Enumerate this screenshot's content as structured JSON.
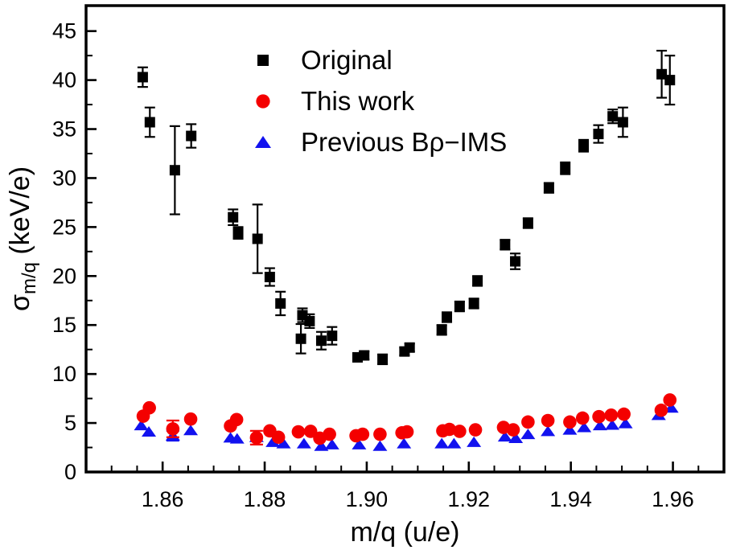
{
  "figure": {
    "background": "#ffffff",
    "frame_color": "#000000"
  },
  "chart_data": {
    "type": "scatter",
    "title": "",
    "xlabel": "m/q (u/e)",
    "ylabel_sigma": "σ",
    "ylabel_subscript": "m/q",
    "ylabel_units": " (keV/e)",
    "xlim": [
      1.845,
      1.97
    ],
    "ylim": [
      0,
      47.6
    ],
    "x_major_ticks": [
      1.86,
      1.88,
      1.9,
      1.92,
      1.94,
      1.96
    ],
    "x_minor_step": 0.005,
    "y_major_ticks": [
      0,
      5,
      10,
      15,
      20,
      25,
      30,
      35,
      40,
      45
    ],
    "y_minor_step": 2.5,
    "grid": false,
    "legend_position": "top-center-inside",
    "legend": {
      "items": [
        {
          "label": "Original",
          "marker": "square-icon",
          "color": "#000000"
        },
        {
          "label": "This work",
          "marker": "circle-icon",
          "color": "#f40000"
        },
        {
          "label": "Previous Bρ−IMS",
          "marker": "triangle-icon",
          "color": "#1212ef"
        }
      ]
    },
    "series": [
      {
        "name": "Original",
        "marker": "square",
        "color": "#000000",
        "points": [
          [
            1.8561,
            40.3,
            1.0
          ],
          [
            1.8575,
            35.7,
            1.5
          ],
          [
            1.8624,
            30.8,
            4.5
          ],
          [
            1.8656,
            34.3,
            1.2
          ],
          [
            1.8738,
            26.0,
            0.8
          ],
          [
            1.8748,
            24.4,
            0.6
          ],
          [
            1.8786,
            23.8,
            3.5
          ],
          [
            1.881,
            19.9,
            0.9
          ],
          [
            1.8831,
            17.2,
            1.2
          ],
          [
            1.8871,
            13.6,
            1.5
          ],
          [
            1.8874,
            16.0,
            0.7
          ],
          [
            1.8888,
            15.4,
            0.7
          ],
          [
            1.8911,
            13.4,
            0.9
          ],
          [
            1.8932,
            13.9,
            0.9
          ],
          [
            1.8982,
            11.7,
            0.4
          ],
          [
            1.8995,
            11.9,
            0.4
          ],
          [
            1.9031,
            11.5,
            0.5
          ],
          [
            1.9074,
            12.3,
            0.4
          ],
          [
            1.9084,
            12.7,
            0.4
          ],
          [
            1.9147,
            14.5,
            0.5
          ],
          [
            1.9157,
            15.8,
            0.5
          ],
          [
            1.9182,
            16.9,
            0.5
          ],
          [
            1.921,
            17.2,
            0.5
          ],
          [
            1.9217,
            19.5,
            0.5
          ],
          [
            1.9271,
            23.2,
            0.5
          ],
          [
            1.9291,
            21.5,
            0.8
          ],
          [
            1.9316,
            25.4,
            0.5
          ],
          [
            1.9357,
            29.0,
            0.5
          ],
          [
            1.9389,
            31.0,
            0.6
          ],
          [
            1.9425,
            33.3,
            0.6
          ],
          [
            1.9454,
            34.5,
            0.9
          ],
          [
            1.9482,
            36.3,
            0.7
          ],
          [
            1.9502,
            35.7,
            1.5
          ],
          [
            1.9578,
            40.6,
            2.4
          ],
          [
            1.9594,
            40.0,
            2.5
          ]
        ]
      },
      {
        "name": "This work",
        "marker": "circle",
        "color": "#f40000",
        "points": [
          [
            1.8562,
            5.7,
            0
          ],
          [
            1.8574,
            6.55,
            0
          ],
          [
            1.862,
            4.4,
            0.85
          ],
          [
            1.8655,
            5.4,
            0
          ],
          [
            1.8733,
            4.7,
            0
          ],
          [
            1.8745,
            5.35,
            0
          ],
          [
            1.8784,
            3.5,
            0.7
          ],
          [
            1.881,
            4.2,
            0
          ],
          [
            1.8827,
            3.55,
            0
          ],
          [
            1.8866,
            4.1,
            0
          ],
          [
            1.889,
            4.15,
            0
          ],
          [
            1.8908,
            3.45,
            0
          ],
          [
            1.8927,
            3.85,
            0
          ],
          [
            1.8979,
            3.7,
            0
          ],
          [
            1.8992,
            3.85,
            0
          ],
          [
            1.9026,
            3.85,
            0
          ],
          [
            1.9069,
            4.0,
            0
          ],
          [
            1.9079,
            4.1,
            0
          ],
          [
            1.9149,
            4.2,
            0
          ],
          [
            1.9162,
            4.35,
            0
          ],
          [
            1.9182,
            4.15,
            0
          ],
          [
            1.9213,
            4.3,
            0
          ],
          [
            1.9268,
            4.55,
            0
          ],
          [
            1.9287,
            4.3,
            0
          ],
          [
            1.9316,
            5.1,
            0
          ],
          [
            1.9355,
            5.25,
            0
          ],
          [
            1.9398,
            5.1,
            0
          ],
          [
            1.9423,
            5.5,
            0
          ],
          [
            1.9455,
            5.65,
            0
          ],
          [
            1.9479,
            5.8,
            0
          ],
          [
            1.9504,
            5.9,
            0
          ],
          [
            1.9577,
            6.3,
            0
          ],
          [
            1.9594,
            7.35,
            0
          ]
        ]
      },
      {
        "name": "Previous Bρ−IMS",
        "marker": "triangle",
        "color": "#1212ef",
        "points": [
          [
            1.8558,
            4.75,
            0
          ],
          [
            1.8573,
            4.1,
            0
          ],
          [
            1.862,
            3.7,
            0.5
          ],
          [
            1.8655,
            4.25,
            0
          ],
          [
            1.8733,
            3.5,
            0
          ],
          [
            1.8746,
            3.4,
            0
          ],
          [
            1.8784,
            3.55,
            0
          ],
          [
            1.8816,
            3.05,
            0
          ],
          [
            1.8837,
            2.9,
            0
          ],
          [
            1.8877,
            2.9,
            0
          ],
          [
            1.8911,
            2.65,
            0
          ],
          [
            1.8932,
            2.8,
            0
          ],
          [
            1.8985,
            2.8,
            0
          ],
          [
            1.9026,
            2.65,
            0
          ],
          [
            1.9073,
            2.9,
            0
          ],
          [
            1.9147,
            2.9,
            0
          ],
          [
            1.9171,
            2.9,
            0
          ],
          [
            1.921,
            3.05,
            0
          ],
          [
            1.9271,
            3.6,
            0
          ],
          [
            1.9292,
            3.45,
            0
          ],
          [
            1.9316,
            3.85,
            0
          ],
          [
            1.9355,
            4.15,
            0
          ],
          [
            1.9398,
            4.3,
            0
          ],
          [
            1.9426,
            4.55,
            0
          ],
          [
            1.9457,
            4.75,
            0
          ],
          [
            1.9481,
            4.8,
            0
          ],
          [
            1.9507,
            4.95,
            0
          ],
          [
            1.9572,
            5.8,
            0
          ],
          [
            1.9597,
            6.55,
            0
          ]
        ]
      }
    ]
  }
}
